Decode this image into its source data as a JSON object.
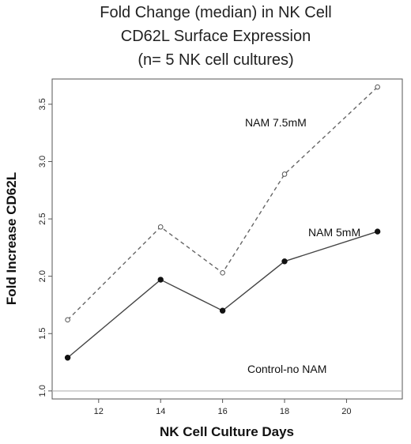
{
  "chart_data": {
    "type": "line",
    "title_lines": [
      "Fold Change (median) in NK Cell",
      "CD62L Surface Expression",
      "(n= 5 NK cell cultures)"
    ],
    "xlabel": "NK Cell Culture Days",
    "ylabel": "Fold Increase CD62L",
    "xlim": [
      10.5,
      21.8
    ],
    "ylim": [
      0.93,
      3.72
    ],
    "xticks": [
      12,
      14,
      16,
      18,
      20
    ],
    "yticks": [
      1.0,
      1.5,
      2.0,
      2.5,
      3.0,
      3.5
    ],
    "x": [
      11,
      14,
      16,
      18,
      21
    ],
    "series": [
      {
        "name": "NAM 7.5mM",
        "values": [
          1.62,
          2.43,
          2.03,
          2.89,
          3.65
        ],
        "style": "dashed",
        "marker": "open-circle",
        "color": "#666666"
      },
      {
        "name": "NAM 5mM",
        "values": [
          1.29,
          1.97,
          1.7,
          2.13,
          2.39
        ],
        "style": "solid",
        "marker": "filled-circle",
        "color": "#444444"
      },
      {
        "name": "Control-no NAM",
        "values": [
          1.0,
          1.0,
          1.0,
          1.0,
          1.0
        ],
        "style": "solid",
        "marker": "none",
        "color": "#bbbbbb"
      }
    ],
    "grid": false,
    "legend": "none"
  }
}
